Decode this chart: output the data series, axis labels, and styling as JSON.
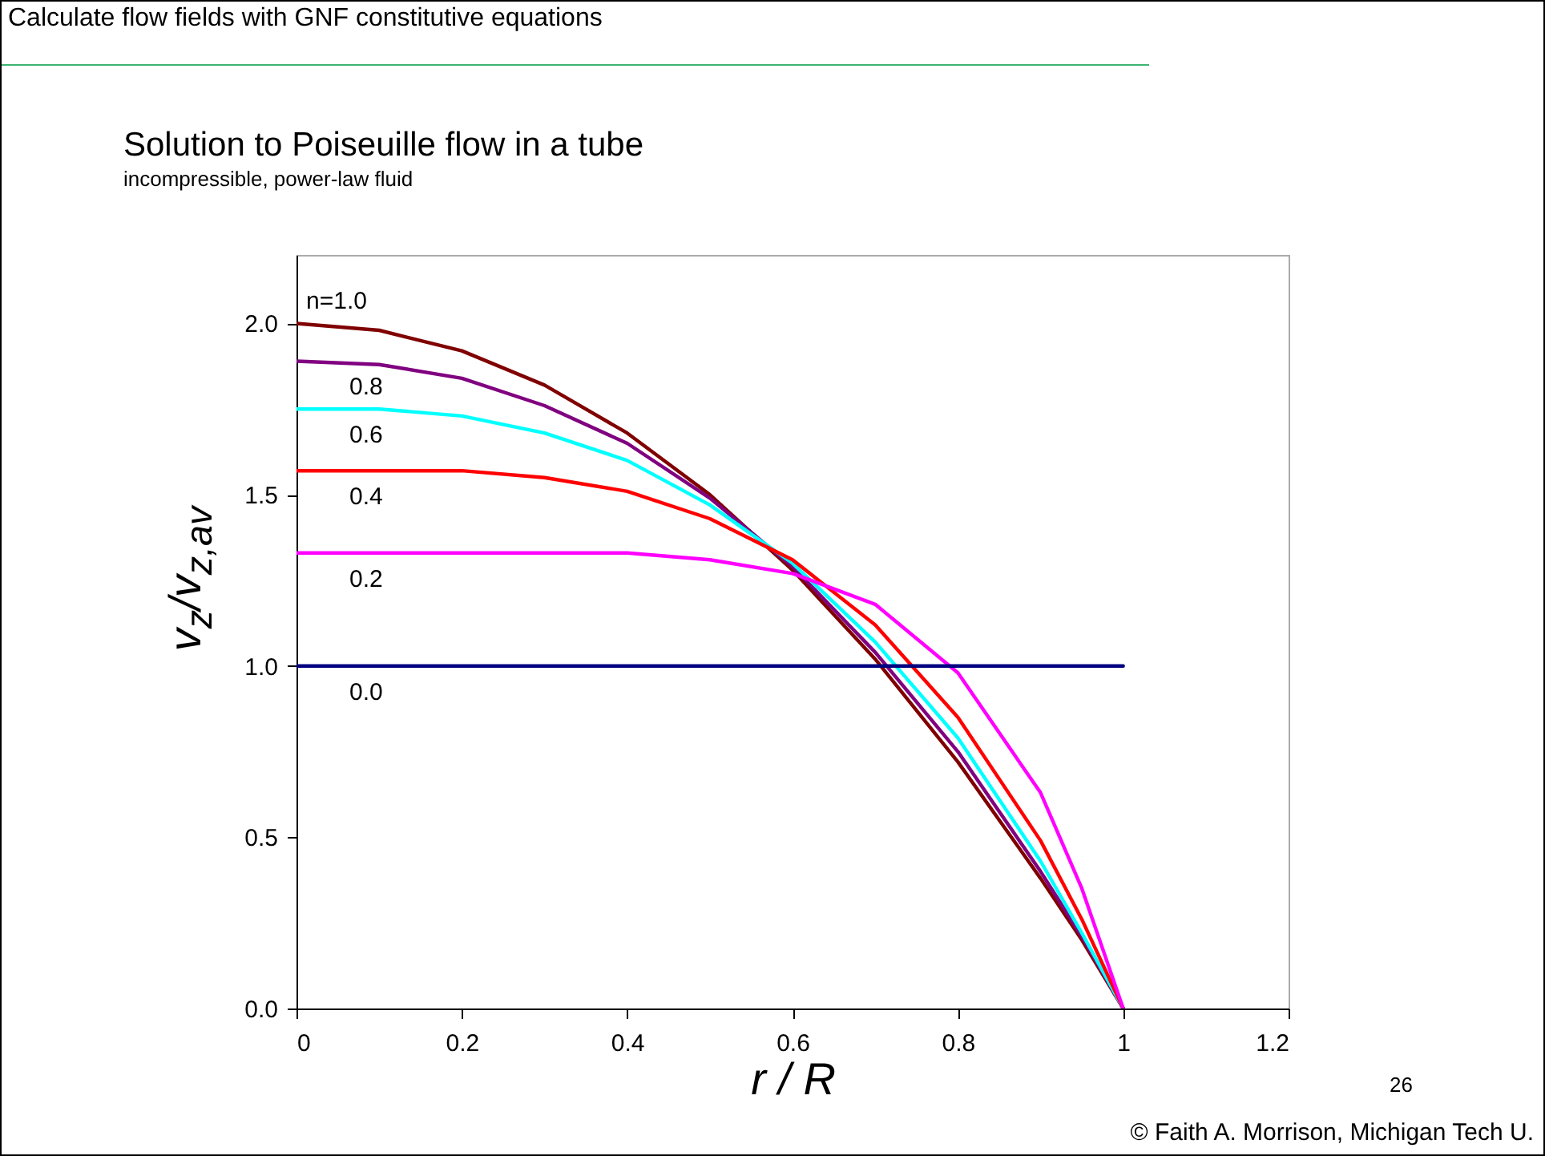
{
  "chart_data": {
    "type": "line",
    "title": "Solution to Poiseuille flow in a tube",
    "subtitle": "incompressible, power-law fluid",
    "xlabel": "r / R",
    "ylabel": "v$_{z}$/v$_{z,av}$",
    "annotations": [
      "Calculate flow fields with GNF constitutive equations",
      "26",
      "© Faith A. Morrison, Michigan Tech U."
    ],
    "x": [
      0,
      0.1,
      0.2,
      0.3,
      0.4,
      0.5,
      0.6,
      0.7,
      0.8,
      0.9,
      0.95,
      1
    ],
    "series": [
      {
        "name": "n=1.0",
        "color": "#800000",
        "values": [
          2,
          1.98,
          1.92,
          1.82,
          1.68,
          1.5,
          1.28,
          1.02,
          0.72,
          0.38,
          0.2,
          0
        ]
      },
      {
        "name": "0.8",
        "color": "#800080",
        "values": [
          1.89,
          1.88,
          1.84,
          1.76,
          1.65,
          1.49,
          1.29,
          1.04,
          0.75,
          0.4,
          0.21,
          0
        ]
      },
      {
        "name": "0.6",
        "color": "#00ffff",
        "values": [
          1.75,
          1.75,
          1.73,
          1.68,
          1.6,
          1.47,
          1.3,
          1.07,
          0.79,
          0.43,
          0.22,
          0
        ]
      },
      {
        "name": "0.4",
        "color": "#ff0000",
        "values": [
          1.57,
          1.57,
          1.57,
          1.55,
          1.51,
          1.43,
          1.31,
          1.12,
          0.85,
          0.49,
          0.26,
          0
        ]
      },
      {
        "name": "0.2",
        "color": "#ff00ff",
        "values": [
          1.33,
          1.33,
          1.33,
          1.33,
          1.33,
          1.31,
          1.27,
          1.18,
          0.98,
          0.63,
          0.35,
          0
        ]
      },
      {
        "name": "0.0",
        "color": "#000080",
        "x": [
          0,
          1
        ],
        "values": [
          1,
          1
        ]
      }
    ],
    "xlim": [
      0,
      1.2
    ],
    "xticks": [
      0,
      0.2,
      0.4,
      0.6,
      0.8,
      1,
      1.2
    ],
    "ylim": [
      0,
      2.2
    ],
    "yticks": [
      {
        "value": 0,
        "label": "0.0"
      },
      {
        "value": 0.5,
        "label": "0.5"
      },
      {
        "value": 1,
        "label": "1.0"
      },
      {
        "value": 1.5,
        "label": "1.5"
      },
      {
        "value": 2,
        "label": "2.0"
      }
    ],
    "grid": false,
    "legend": false,
    "marker": "none",
    "line_style": "solid"
  }
}
